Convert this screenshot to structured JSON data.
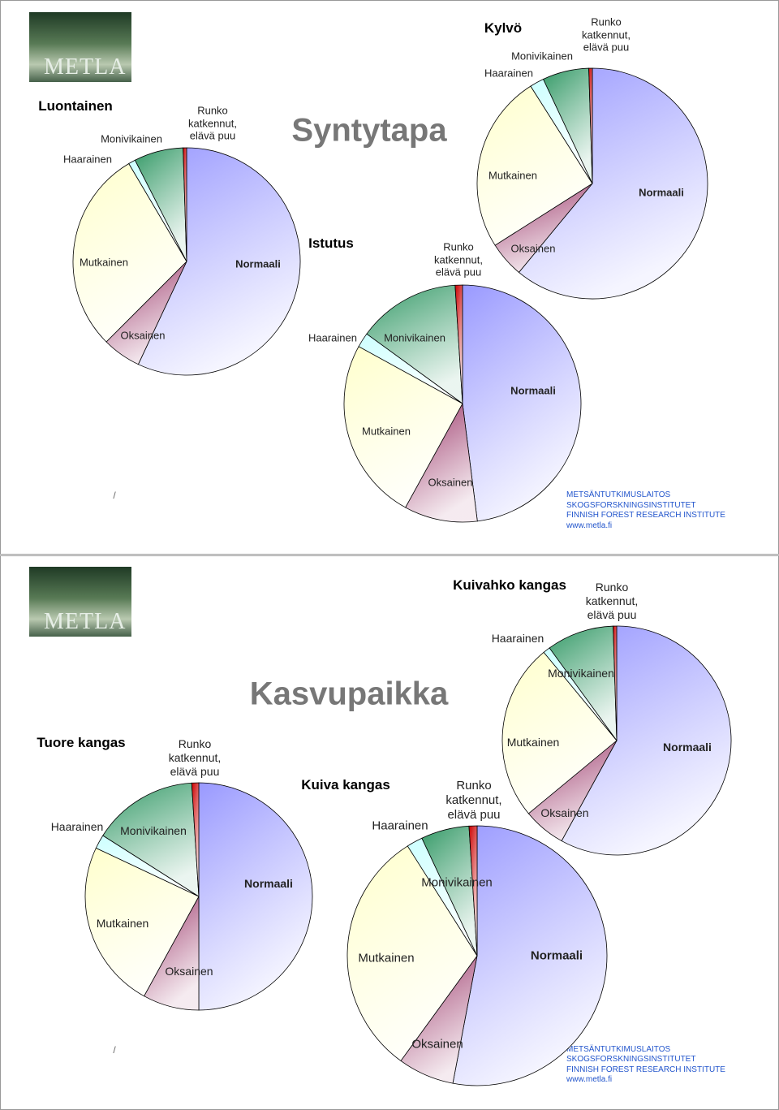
{
  "slides": [
    {
      "title": "Syntytapa",
      "logo": "METLA",
      "slash": "/",
      "footer": [
        "METSÄNTUTKIMUSLAITOS",
        "SKOGSFORSKNINGSINSTITUTET",
        "FINNISH FOREST RESEARCH INSTITUTE",
        "www.metla.fi"
      ]
    },
    {
      "title": "Kasvupaikka",
      "logo": "METLA",
      "slash": "/",
      "footer": [
        "METSÄNTUTKIMUSLAITOS",
        "SKOGSFORSKNINGSINSTITUTET",
        "FINNISH FOREST RESEARCH INSTITUTE",
        "www.metla.fi"
      ]
    }
  ],
  "chart_data": [
    {
      "type": "pie",
      "title": "Luontainen",
      "categories": [
        "Normaali",
        "Oksainen",
        "Mutkainen",
        "Haarainen",
        "Monivikainen",
        "Runko katkennut, elävä puu"
      ],
      "values": [
        57,
        5.5,
        29,
        1,
        7,
        0.5
      ],
      "colors": [
        "#9999ff",
        "#993366",
        "#ffffcc",
        "#ccffff",
        "#339966",
        "#cc0000"
      ]
    },
    {
      "type": "pie",
      "title": "Kylvö",
      "categories": [
        "Normaali",
        "Oksainen",
        "Mutkainen",
        "Haarainen",
        "Monivikainen",
        "Runko katkennut, elävä puu"
      ],
      "values": [
        61,
        5,
        25,
        2,
        6.5,
        0.5
      ],
      "colors": [
        "#9999ff",
        "#993366",
        "#ffffcc",
        "#ccffff",
        "#339966",
        "#cc0000"
      ]
    },
    {
      "type": "pie",
      "title": "Istutus",
      "categories": [
        "Normaali",
        "Oksainen",
        "Mutkainen",
        "Haarainen",
        "Monivikainen",
        "Runko katkennut, elävä puu"
      ],
      "values": [
        48,
        10,
        25,
        2,
        14,
        1
      ],
      "colors": [
        "#9999ff",
        "#993366",
        "#ffffcc",
        "#ccffff",
        "#339966",
        "#cc0000"
      ]
    },
    {
      "type": "pie",
      "title": "Kuivahko kangas",
      "categories": [
        "Normaali",
        "Oksainen",
        "Mutkainen",
        "Haarainen",
        "Monivikainen",
        "Runko katkennut, elävä puu"
      ],
      "values": [
        58,
        6,
        25,
        1,
        9.5,
        0.5
      ],
      "colors": [
        "#9999ff",
        "#993366",
        "#ffffcc",
        "#ccffff",
        "#339966",
        "#cc0000"
      ]
    },
    {
      "type": "pie",
      "title": "Tuore kangas",
      "categories": [
        "Normaali",
        "Oksainen",
        "Mutkainen",
        "Haarainen",
        "Monivikainen",
        "Runko katkennut, elävä puu"
      ],
      "values": [
        50,
        8,
        24,
        2,
        15,
        1
      ],
      "colors": [
        "#9999ff",
        "#993366",
        "#ffffcc",
        "#ccffff",
        "#339966",
        "#cc0000"
      ]
    },
    {
      "type": "pie",
      "title": "Kuiva kangas",
      "categories": [
        "Normaali",
        "Oksainen",
        "Mutkainen",
        "Haarainen",
        "Monivikainen",
        "Runko katkennut, elävä puu"
      ],
      "values": [
        53,
        7,
        31,
        2,
        6,
        1
      ],
      "colors": [
        "#9999ff",
        "#993366",
        "#ffffcc",
        "#ccffff",
        "#339966",
        "#cc0000"
      ]
    }
  ]
}
